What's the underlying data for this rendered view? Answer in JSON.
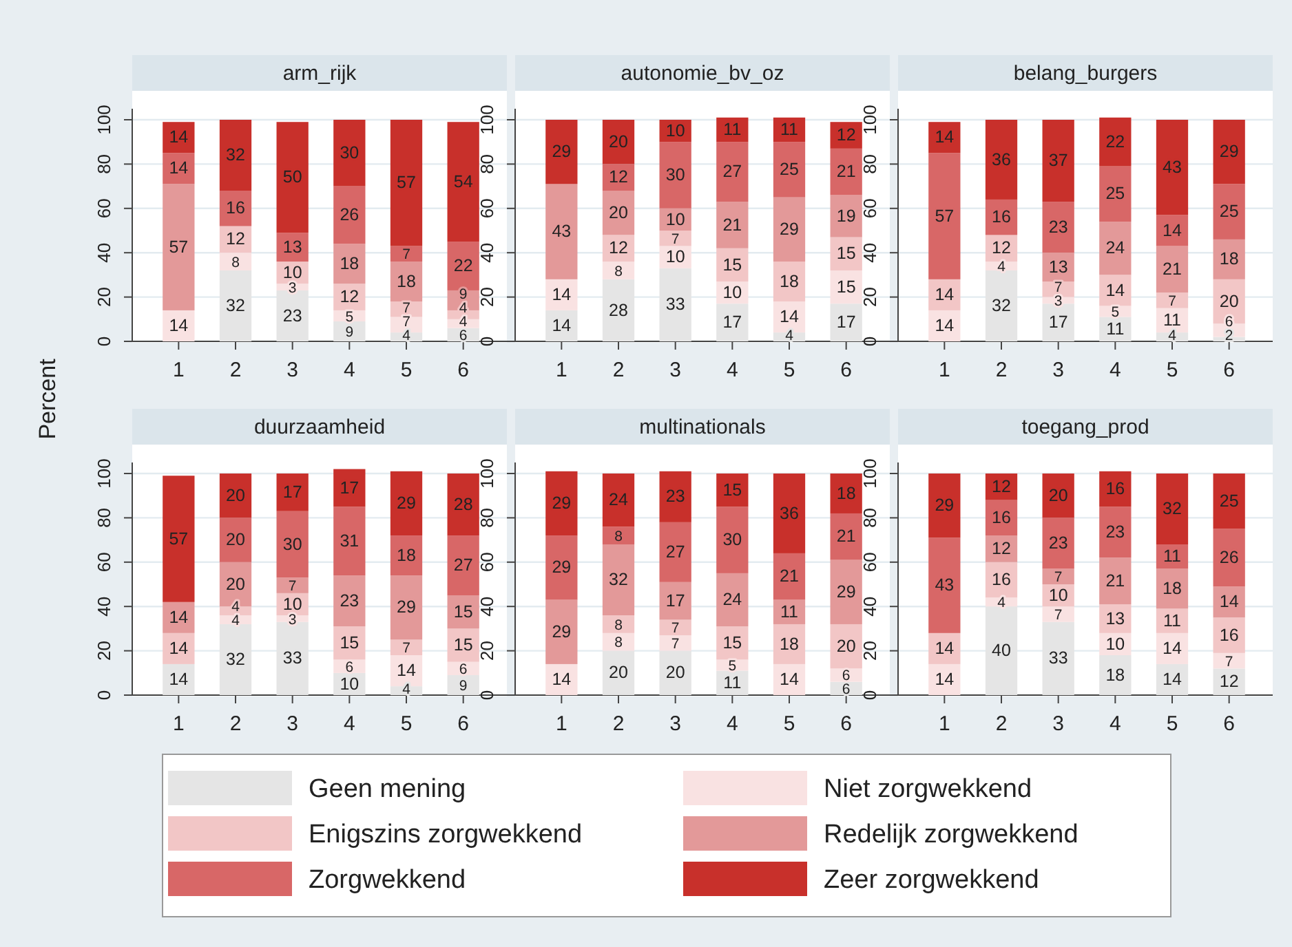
{
  "chart_data": [
    {
      "type": "bar",
      "title": "arm_rijk",
      "ylabel": "Percent",
      "categories": [
        "1",
        "2",
        "3",
        "4",
        "5",
        "6"
      ],
      "stacked": true,
      "data_labels": true,
      "grid": "y",
      "legend": "bottom",
      "ylim": [
        0,
        105
      ],
      "yticks": [
        0,
        20,
        40,
        60,
        80,
        100
      ],
      "series": [
        {
          "name": "Geen mening",
          "color": "#e5e5e5",
          "values": [
            null,
            32,
            23,
            9,
            4,
            6
          ]
        },
        {
          "name": "Niet zorgwekkend",
          "color": "#f9e2e2",
          "values": [
            14,
            8,
            3,
            5,
            7,
            4
          ]
        },
        {
          "name": "Enigszins zorgwekkend",
          "color": "#f2c6c6",
          "values": [
            null,
            12,
            10,
            12,
            7,
            4
          ]
        },
        {
          "name": "Redelijk zorgwekkend",
          "color": "#e39999",
          "values": [
            57,
            null,
            null,
            18,
            18,
            9
          ]
        },
        {
          "name": "Zorgwekkend",
          "color": "#d86767",
          "values": [
            14,
            16,
            13,
            26,
            7,
            22
          ]
        },
        {
          "name": "Zeer zorgwekkend",
          "color": "#c8302b",
          "values": [
            14,
            32,
            50,
            30,
            57,
            54
          ]
        }
      ]
    },
    {
      "type": "bar",
      "title": "autonomie_bv_oz",
      "categories": [
        "1",
        "2",
        "3",
        "4",
        "5",
        "6"
      ],
      "stacked": true,
      "data_labels": true,
      "grid": "y",
      "ylim": [
        0,
        105
      ],
      "yticks": [
        0,
        20,
        40,
        60,
        80,
        100
      ],
      "series": [
        {
          "color": "#e5e5e5",
          "values": [
            14,
            28,
            33,
            17,
            4,
            17
          ]
        },
        {
          "color": "#f9e2e2",
          "values": [
            14,
            8,
            10,
            10,
            14,
            15
          ]
        },
        {
          "color": "#f2c6c6",
          "values": [
            null,
            12,
            7,
            15,
            18,
            15
          ]
        },
        {
          "color": "#e39999",
          "values": [
            43,
            20,
            10,
            21,
            29,
            19
          ]
        },
        {
          "color": "#d86767",
          "values": [
            null,
            12,
            30,
            27,
            25,
            21
          ]
        },
        {
          "color": "#c8302b",
          "values": [
            29,
            20,
            10,
            11,
            11,
            12
          ]
        }
      ]
    },
    {
      "type": "bar",
      "title": "belang_burgers",
      "categories": [
        "1",
        "2",
        "3",
        "4",
        "5",
        "6"
      ],
      "stacked": true,
      "data_labels": true,
      "grid": "y",
      "ylim": [
        0,
        105
      ],
      "yticks": [
        0,
        20,
        40,
        60,
        80,
        100
      ],
      "series": [
        {
          "color": "#e5e5e5",
          "values": [
            null,
            32,
            17,
            11,
            4,
            2
          ]
        },
        {
          "color": "#f9e2e2",
          "values": [
            14,
            4,
            3,
            5,
            11,
            6
          ]
        },
        {
          "color": "#f2c6c6",
          "values": [
            14,
            12,
            7,
            14,
            7,
            20
          ]
        },
        {
          "color": "#e39999",
          "values": [
            null,
            null,
            13,
            24,
            21,
            18
          ]
        },
        {
          "color": "#d86767",
          "values": [
            57,
            16,
            23,
            25,
            14,
            25
          ]
        },
        {
          "color": "#c8302b",
          "values": [
            14,
            36,
            37,
            22,
            43,
            29
          ]
        }
      ]
    },
    {
      "type": "bar",
      "title": "duurzaamheid",
      "categories": [
        "1",
        "2",
        "3",
        "4",
        "5",
        "6"
      ],
      "stacked": true,
      "data_labels": true,
      "grid": "y",
      "ylim": [
        0,
        105
      ],
      "yticks": [
        0,
        20,
        40,
        60,
        80,
        100
      ],
      "series": [
        {
          "color": "#e5e5e5",
          "values": [
            14,
            32,
            33,
            10,
            4,
            9
          ]
        },
        {
          "color": "#f9e2e2",
          "values": [
            null,
            4,
            3,
            6,
            14,
            6
          ]
        },
        {
          "color": "#f2c6c6",
          "values": [
            14,
            4,
            10,
            15,
            7,
            15
          ]
        },
        {
          "color": "#e39999",
          "values": [
            14,
            20,
            7,
            23,
            29,
            15
          ]
        },
        {
          "color": "#d86767",
          "values": [
            null,
            20,
            30,
            31,
            18,
            27
          ]
        },
        {
          "color": "#c8302b",
          "values": [
            57,
            20,
            17,
            17,
            29,
            28
          ]
        }
      ]
    },
    {
      "type": "bar",
      "title": "multinationals",
      "categories": [
        "1",
        "2",
        "3",
        "4",
        "5",
        "6"
      ],
      "stacked": true,
      "data_labels": true,
      "grid": "y",
      "ylim": [
        0,
        105
      ],
      "yticks": [
        0,
        20,
        40,
        60,
        80,
        100
      ],
      "series": [
        {
          "color": "#e5e5e5",
          "values": [
            null,
            20,
            20,
            11,
            null,
            6
          ]
        },
        {
          "color": "#f9e2e2",
          "values": [
            14,
            8,
            7,
            5,
            14,
            6
          ]
        },
        {
          "color": "#f2c6c6",
          "values": [
            null,
            8,
            7,
            15,
            18,
            20
          ]
        },
        {
          "color": "#e39999",
          "values": [
            29,
            32,
            17,
            24,
            11,
            29
          ]
        },
        {
          "color": "#d86767",
          "values": [
            29,
            8,
            27,
            30,
            21,
            21
          ]
        },
        {
          "color": "#c8302b",
          "values": [
            29,
            24,
            23,
            15,
            36,
            18
          ]
        }
      ]
    },
    {
      "type": "bar",
      "title": "toegang_prod",
      "categories": [
        "1",
        "2",
        "3",
        "4",
        "5",
        "6"
      ],
      "stacked": true,
      "data_labels": true,
      "grid": "y",
      "ylim": [
        0,
        105
      ],
      "yticks": [
        0,
        20,
        40,
        60,
        80,
        100
      ],
      "series": [
        {
          "color": "#e5e5e5",
          "values": [
            null,
            40,
            33,
            18,
            14,
            12
          ]
        },
        {
          "color": "#f9e2e2",
          "values": [
            14,
            4,
            7,
            10,
            14,
            7
          ]
        },
        {
          "color": "#f2c6c6",
          "values": [
            14,
            16,
            10,
            13,
            11,
            16
          ]
        },
        {
          "color": "#e39999",
          "values": [
            null,
            12,
            7,
            21,
            18,
            14
          ]
        },
        {
          "color": "#d86767",
          "values": [
            43,
            16,
            23,
            23,
            11,
            26
          ]
        },
        {
          "color": "#c8302b",
          "values": [
            29,
            12,
            20,
            16,
            32,
            25
          ]
        }
      ]
    }
  ]
}
